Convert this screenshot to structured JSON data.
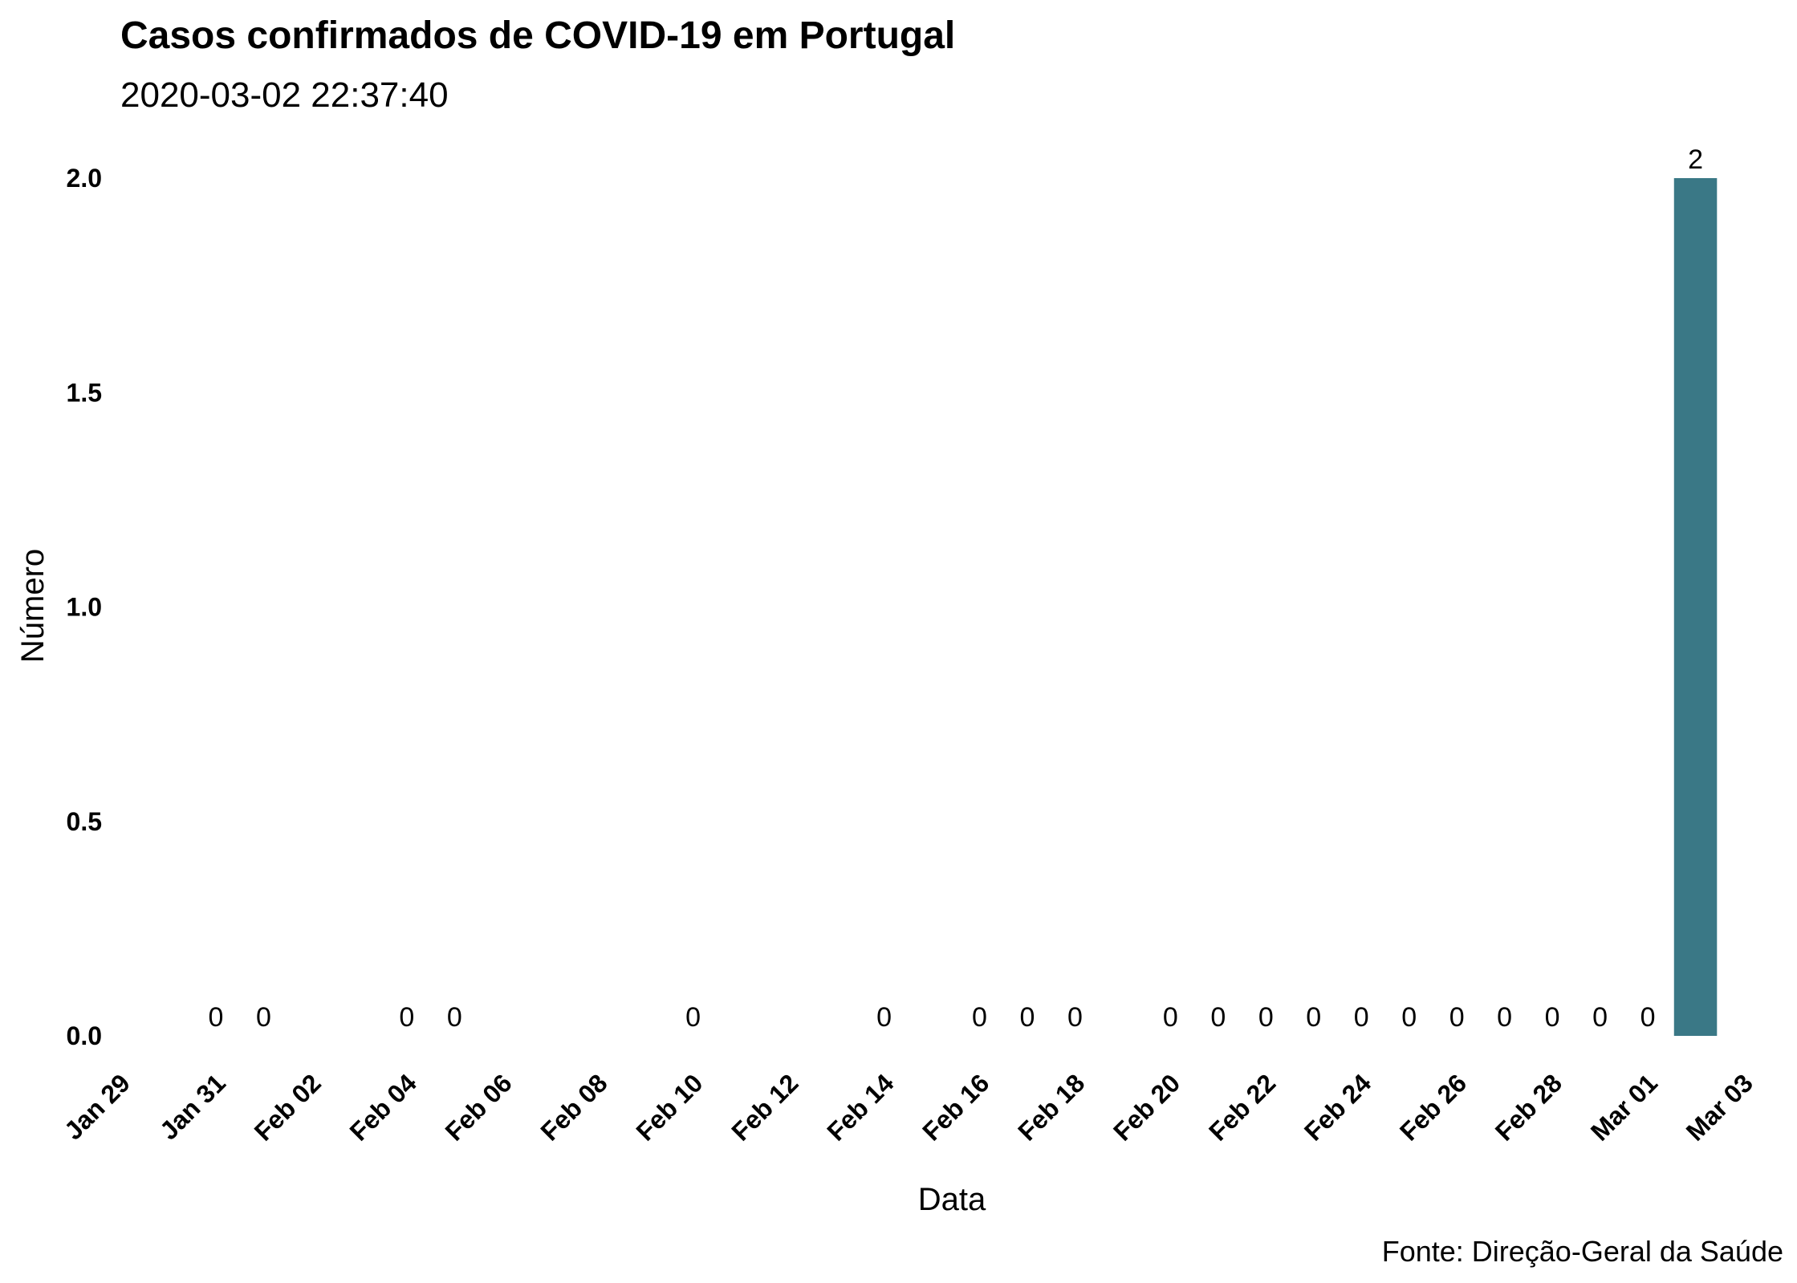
{
  "title": "Casos confirmados de COVID-19 em Portugal",
  "subtitle": "2020-03-02 22:37:40",
  "caption": "Fonte: Direção-Geral da Saúde",
  "chart_data": {
    "type": "bar",
    "xlabel": "Data",
    "ylabel": "Número",
    "xlim": [
      "2020-01-29",
      "2020-03-03"
    ],
    "ylim": [
      0,
      2.0
    ],
    "yticks": [
      "0.0",
      "0.5",
      "1.0",
      "1.5",
      "2.0"
    ],
    "xticks": [
      "Jan 29",
      "Jan 31",
      "Feb 02",
      "Feb 04",
      "Feb 06",
      "Feb 08",
      "Feb 10",
      "Feb 12",
      "Feb 14",
      "Feb 16",
      "Feb 18",
      "Feb 20",
      "Feb 22",
      "Feb 24",
      "Feb 26",
      "Feb 28",
      "Mar 01",
      "Mar 03"
    ],
    "grid": false,
    "bar_color": "#3a7886",
    "points": [
      {
        "date": "2020-01-31",
        "value": 0
      },
      {
        "date": "2020-02-01",
        "value": 0
      },
      {
        "date": "2020-02-04",
        "value": 0
      },
      {
        "date": "2020-02-05",
        "value": 0
      },
      {
        "date": "2020-02-10",
        "value": 0
      },
      {
        "date": "2020-02-14",
        "value": 0
      },
      {
        "date": "2020-02-16",
        "value": 0
      },
      {
        "date": "2020-02-17",
        "value": 0
      },
      {
        "date": "2020-02-18",
        "value": 0
      },
      {
        "date": "2020-02-20",
        "value": 0
      },
      {
        "date": "2020-02-21",
        "value": 0
      },
      {
        "date": "2020-02-22",
        "value": 0
      },
      {
        "date": "2020-02-23",
        "value": 0
      },
      {
        "date": "2020-02-24",
        "value": 0
      },
      {
        "date": "2020-02-25",
        "value": 0
      },
      {
        "date": "2020-02-26",
        "value": 0
      },
      {
        "date": "2020-02-27",
        "value": 0
      },
      {
        "date": "2020-02-28",
        "value": 0
      },
      {
        "date": "2020-02-29",
        "value": 0
      },
      {
        "date": "2020-03-01",
        "value": 0
      },
      {
        "date": "2020-03-02",
        "value": 2
      }
    ]
  }
}
